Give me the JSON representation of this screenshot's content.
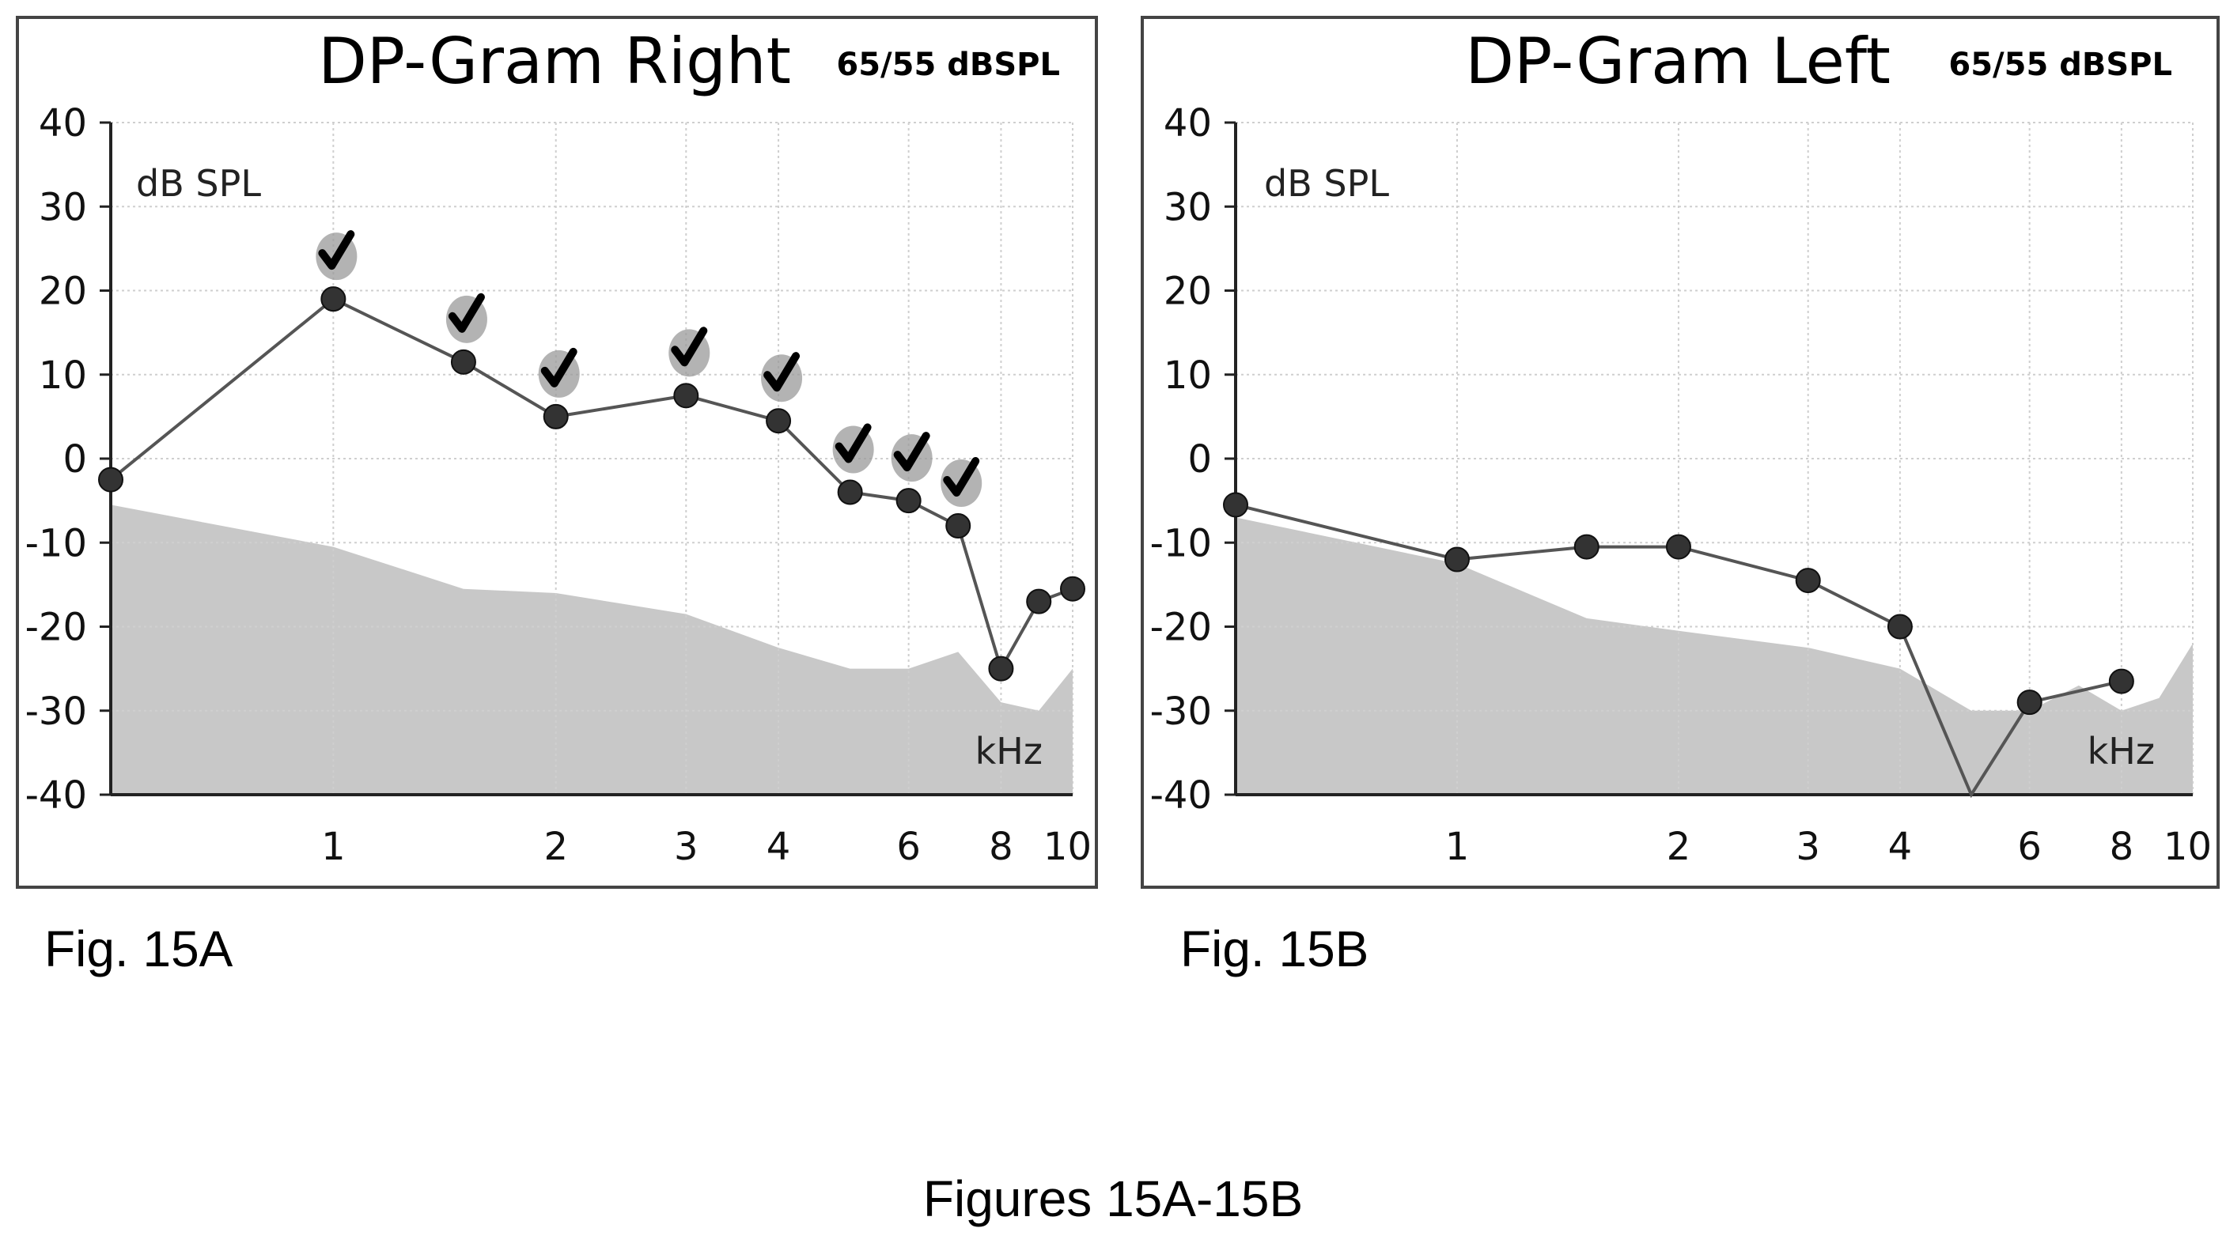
{
  "chart_data": [
    {
      "type": "line",
      "figure_label": "Fig. 15A",
      "title": "DP-Gram Right",
      "subtitle": "65/55 dBSPL",
      "ylabel": "dB SPL",
      "xlabel": "kHz",
      "x_scale": "log",
      "xlim": [
        0.5,
        10
      ],
      "ylim": [
        -40,
        40
      ],
      "yticks": [
        "40",
        "30",
        "20",
        "10",
        "0",
        "-10",
        "-20",
        "-30",
        "-40"
      ],
      "xticks": [
        {
          "value": 1,
          "label": "1"
        },
        {
          "value": 2,
          "label": "2"
        },
        {
          "value": 3,
          "label": "3"
        },
        {
          "value": 4,
          "label": "4"
        },
        {
          "value": 6,
          "label": "6"
        },
        {
          "value": 8,
          "label": "8"
        },
        {
          "value": 10,
          "label": "10"
        }
      ],
      "grid": true,
      "series": [
        {
          "marker": "circle",
          "color": "#333333",
          "x": [
            0.5,
            1.0,
            1.5,
            2.0,
            3.0,
            4.0,
            5.0,
            6.0,
            7.0,
            8.0,
            9.0,
            10.0
          ],
          "y": [
            -2.5,
            19,
            11.5,
            5,
            7.5,
            4.5,
            -4,
            -5,
            -8,
            -25,
            -17,
            -15.5
          ],
          "pass": [
            false,
            true,
            true,
            true,
            true,
            true,
            true,
            true,
            true,
            false,
            false,
            false
          ]
        }
      ],
      "noise_floor": {
        "color": "#c8c8c8",
        "x": [
          0.5,
          1.0,
          1.5,
          2.0,
          3.0,
          4.0,
          5.0,
          6.0,
          7.0,
          8.0,
          9.0,
          10.0
        ],
        "y": [
          -5.5,
          -10.5,
          -15.5,
          -16,
          -18.5,
          -22.5,
          -25,
          -25,
          -23,
          -29,
          -30,
          -25
        ]
      }
    },
    {
      "type": "line",
      "figure_label": "Fig. 15B",
      "title": "DP-Gram Left",
      "subtitle": "65/55 dBSPL",
      "ylabel": "dB SPL",
      "xlabel": "kHz",
      "x_scale": "log",
      "xlim": [
        0.5,
        10
      ],
      "ylim": [
        -40,
        40
      ],
      "yticks": [
        "40",
        "30",
        "20",
        "10",
        "0",
        "-10",
        "-20",
        "-30",
        "-40"
      ],
      "xticks": [
        {
          "value": 1,
          "label": "1"
        },
        {
          "value": 2,
          "label": "2"
        },
        {
          "value": 3,
          "label": "3"
        },
        {
          "value": 4,
          "label": "4"
        },
        {
          "value": 6,
          "label": "6"
        },
        {
          "value": 8,
          "label": "8"
        },
        {
          "value": 10,
          "label": "10"
        }
      ],
      "grid": true,
      "series": [
        {
          "marker": "circle",
          "color": "#333333",
          "x": [
            0.5,
            1.0,
            1.5,
            2.0,
            3.0,
            4.0,
            5.0,
            6.0,
            8.0
          ],
          "y": [
            -5.5,
            -12,
            -10.5,
            -10.5,
            -14.5,
            -20,
            -40,
            -29,
            -26.5
          ],
          "hidden_marker": [
            false,
            false,
            false,
            false,
            false,
            false,
            true,
            false,
            false
          ]
        }
      ],
      "noise_floor": {
        "color": "#c8c8c8",
        "x": [
          0.5,
          1.0,
          1.5,
          2.0,
          3.0,
          4.0,
          5.0,
          6.0,
          7.0,
          8.0,
          9.0,
          10.0
        ],
        "y": [
          -7,
          -12.5,
          -19,
          -20.5,
          -22.5,
          -25,
          -30,
          -30,
          -27,
          -30,
          -28.5,
          -22
        ]
      }
    }
  ],
  "page": {
    "caption": "Figures 15A-15B"
  }
}
